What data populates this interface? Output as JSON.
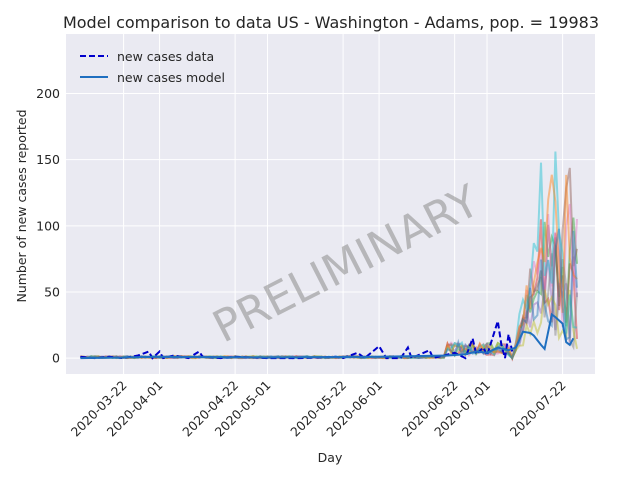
{
  "chart_data": {
    "type": "line",
    "title": "Model comparison to data US - Washington - Adams, pop. = 19983",
    "xlabel": "Day",
    "ylabel": "Number of new cases reported",
    "watermark": "PRELIMINARY",
    "x_tick_labels": [
      "2020-03-22",
      "2020-04-01",
      "2020-04-22",
      "2020-05-01",
      "2020-05-22",
      "2020-06-01",
      "2020-06-22",
      "2020-07-01",
      "2020-07-22"
    ],
    "y_tick_labels": [
      "0",
      "50",
      "100",
      "150",
      "200"
    ],
    "ylim": [
      -12,
      245
    ],
    "xlim": [
      "2020-03-06",
      "2020-07-31"
    ],
    "grid": true,
    "legend_position": "top-left",
    "legend": [
      {
        "label": "new cases data",
        "style": "dashed",
        "color": "#0000cc"
      },
      {
        "label": "new cases model",
        "style": "solid",
        "color": "#1f6fc0"
      }
    ],
    "colors": {
      "background": "#eaeaf2",
      "grid": "#ffffff",
      "data": "#0000cc",
      "model": "#1f6fc0"
    },
    "series": [
      {
        "name": "new cases data",
        "points": [
          [
            "2020-03-10",
            1
          ],
          [
            "2020-03-14",
            0
          ],
          [
            "2020-03-18",
            1
          ],
          [
            "2020-03-22",
            0
          ],
          [
            "2020-03-26",
            2
          ],
          [
            "2020-03-29",
            5
          ],
          [
            "2020-03-30",
            0
          ],
          [
            "2020-04-01",
            5
          ],
          [
            "2020-04-02",
            0
          ],
          [
            "2020-04-05",
            2
          ],
          [
            "2020-04-09",
            0
          ],
          [
            "2020-04-12",
            5
          ],
          [
            "2020-04-13",
            1
          ],
          [
            "2020-04-18",
            0
          ],
          [
            "2020-04-22",
            1
          ],
          [
            "2020-05-01",
            0
          ],
          [
            "2020-05-10",
            0
          ],
          [
            "2020-05-20",
            1
          ],
          [
            "2020-05-22",
            0
          ],
          [
            "2020-05-26",
            4
          ],
          [
            "2020-05-28",
            0
          ],
          [
            "2020-06-01",
            9
          ],
          [
            "2020-06-03",
            0
          ],
          [
            "2020-06-07",
            0
          ],
          [
            "2020-06-09",
            8
          ],
          [
            "2020-06-10",
            0
          ],
          [
            "2020-06-15",
            6
          ],
          [
            "2020-06-16",
            0
          ],
          [
            "2020-06-19",
            2
          ],
          [
            "2020-06-22",
            4
          ],
          [
            "2020-06-25",
            0
          ],
          [
            "2020-06-27",
            15
          ],
          [
            "2020-06-28",
            3
          ],
          [
            "2020-06-30",
            8
          ],
          [
            "2020-07-01",
            2
          ],
          [
            "2020-07-04",
            28
          ],
          [
            "2020-07-05",
            10
          ],
          [
            "2020-07-06",
            0
          ],
          [
            "2020-07-07",
            18
          ],
          [
            "2020-07-08",
            5
          ]
        ]
      },
      {
        "name": "new cases model",
        "points": [
          [
            "2020-03-10",
            0
          ],
          [
            "2020-04-01",
            1
          ],
          [
            "2020-05-01",
            0.5
          ],
          [
            "2020-06-01",
            1
          ],
          [
            "2020-06-20",
            2
          ],
          [
            "2020-06-25",
            3
          ],
          [
            "2020-06-28",
            5
          ],
          [
            "2020-07-01",
            4
          ],
          [
            "2020-07-04",
            8
          ],
          [
            "2020-07-07",
            6
          ],
          [
            "2020-07-09",
            8
          ],
          [
            "2020-07-11",
            20
          ],
          [
            "2020-07-13",
            19
          ],
          [
            "2020-07-14",
            17
          ],
          [
            "2020-07-16",
            10
          ],
          [
            "2020-07-17",
            7
          ],
          [
            "2020-07-19",
            33
          ],
          [
            "2020-07-20",
            31
          ],
          [
            "2020-07-22",
            26
          ],
          [
            "2020-07-23",
            12
          ],
          [
            "2020-07-24",
            10
          ],
          [
            "2020-07-25",
            15
          ]
        ]
      }
    ]
  }
}
